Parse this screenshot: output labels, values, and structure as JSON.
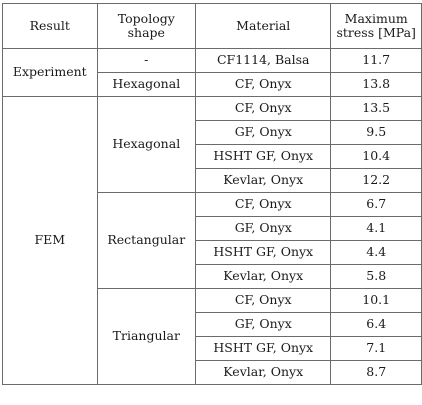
{
  "table": {
    "headers": {
      "result": "Result",
      "topology_line1": "Topology",
      "topology_line2": "shape",
      "material": "Material",
      "stress_line1": "Maximum",
      "stress_line2": "stress [MPa]"
    },
    "experiment": {
      "label": "Experiment",
      "rows": [
        {
          "shape": "-",
          "material": "CF1114, Balsa",
          "stress": "11.7"
        },
        {
          "shape": "Hexagonal",
          "material": "CF, Onyx",
          "stress": "13.8"
        }
      ]
    },
    "fem": {
      "label": "FEM",
      "groups": [
        {
          "shape": "Hexagonal",
          "rows": [
            {
              "material": "CF, Onyx",
              "stress": "13.5"
            },
            {
              "material": "GF, Onyx",
              "stress": "9.5"
            },
            {
              "material": "HSHT GF, Onyx",
              "stress": "10.4"
            },
            {
              "material": "Kevlar, Onyx",
              "stress": "12.2"
            }
          ]
        },
        {
          "shape": "Rectangular",
          "rows": [
            {
              "material": "CF, Onyx",
              "stress": "6.7"
            },
            {
              "material": "GF, Onyx",
              "stress": "4.1"
            },
            {
              "material": "HSHT GF, Onyx",
              "stress": "4.4"
            },
            {
              "material": "Kevlar, Onyx",
              "stress": "5.8"
            }
          ]
        },
        {
          "shape": "Triangular",
          "rows": [
            {
              "material": "CF, Onyx",
              "stress": "10.1"
            },
            {
              "material": "GF, Onyx",
              "stress": "6.4"
            },
            {
              "material": "HSHT GF, Onyx",
              "stress": "7.1"
            },
            {
              "material": "Kevlar, Onyx",
              "stress": "8.7"
            }
          ]
        }
      ]
    }
  }
}
